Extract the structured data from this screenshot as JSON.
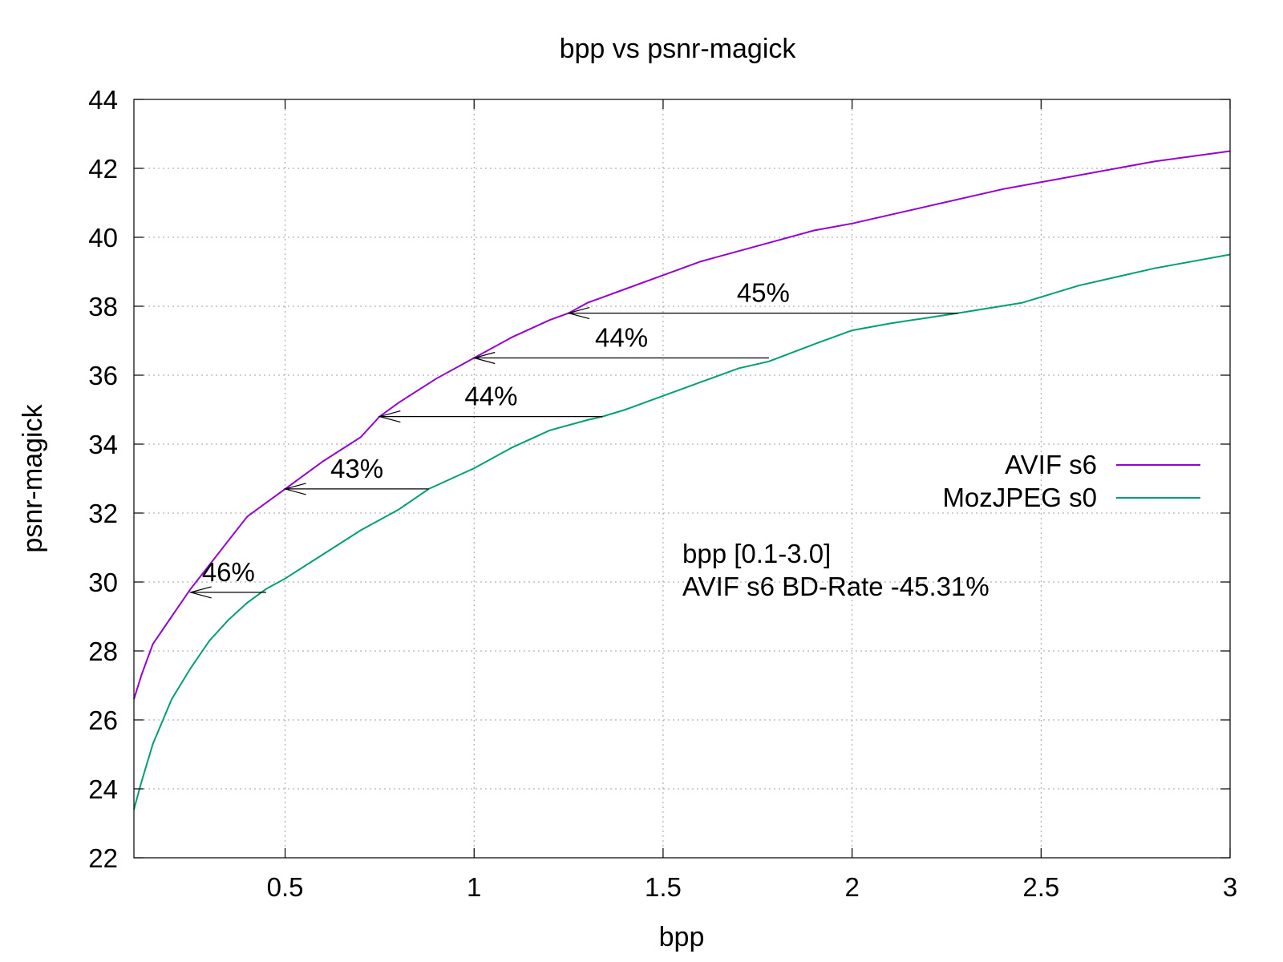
{
  "chart_data": {
    "type": "line",
    "title": "bpp vs psnr-magick",
    "xlabel": "bpp",
    "ylabel": "psnr-magick",
    "xlim": [
      0.1,
      3.0
    ],
    "ylim": [
      22,
      44
    ],
    "xticks": [
      0.5,
      1,
      1.5,
      2,
      2.5,
      3
    ],
    "xtick_labels": [
      "0.5",
      "1",
      "1.5",
      "2",
      "2.5",
      "3"
    ],
    "yticks": [
      22,
      24,
      26,
      28,
      30,
      32,
      34,
      36,
      38,
      40,
      42,
      44
    ],
    "ytick_labels": [
      "22",
      "24",
      "26",
      "28",
      "30",
      "32",
      "34",
      "36",
      "38",
      "40",
      "42",
      "44"
    ],
    "grid": true,
    "legend_position": "right",
    "series": [
      {
        "name": "AVIF s6",
        "color": "#9400d3",
        "points": [
          [
            0.1,
            26.6
          ],
          [
            0.12,
            27.3
          ],
          [
            0.15,
            28.2
          ],
          [
            0.2,
            29.0
          ],
          [
            0.25,
            29.8
          ],
          [
            0.3,
            30.5
          ],
          [
            0.35,
            31.2
          ],
          [
            0.4,
            31.9
          ],
          [
            0.5,
            32.7
          ],
          [
            0.6,
            33.5
          ],
          [
            0.7,
            34.2
          ],
          [
            0.75,
            34.8
          ],
          [
            0.8,
            35.2
          ],
          [
            0.9,
            35.9
          ],
          [
            1.0,
            36.5
          ],
          [
            1.1,
            37.1
          ],
          [
            1.2,
            37.6
          ],
          [
            1.25,
            37.8
          ],
          [
            1.3,
            38.1
          ],
          [
            1.4,
            38.5
          ],
          [
            1.5,
            38.9
          ],
          [
            1.6,
            39.3
          ],
          [
            1.7,
            39.6
          ],
          [
            1.8,
            39.9
          ],
          [
            1.9,
            40.2
          ],
          [
            2.0,
            40.4
          ],
          [
            2.2,
            40.9
          ],
          [
            2.4,
            41.4
          ],
          [
            2.6,
            41.8
          ],
          [
            2.8,
            42.2
          ],
          [
            3.0,
            42.5
          ]
        ]
      },
      {
        "name": "MozJPEG s0",
        "color": "#009e73",
        "points": [
          [
            0.1,
            23.4
          ],
          [
            0.12,
            24.2
          ],
          [
            0.15,
            25.3
          ],
          [
            0.2,
            26.6
          ],
          [
            0.25,
            27.5
          ],
          [
            0.3,
            28.3
          ],
          [
            0.35,
            28.9
          ],
          [
            0.4,
            29.4
          ],
          [
            0.45,
            29.8
          ],
          [
            0.5,
            30.1
          ],
          [
            0.6,
            30.8
          ],
          [
            0.7,
            31.5
          ],
          [
            0.8,
            32.1
          ],
          [
            0.88,
            32.7
          ],
          [
            0.9,
            32.8
          ],
          [
            1.0,
            33.3
          ],
          [
            1.1,
            33.9
          ],
          [
            1.2,
            34.4
          ],
          [
            1.3,
            34.7
          ],
          [
            1.34,
            34.8
          ],
          [
            1.4,
            35.0
          ],
          [
            1.5,
            35.4
          ],
          [
            1.6,
            35.8
          ],
          [
            1.7,
            36.2
          ],
          [
            1.78,
            36.4
          ],
          [
            1.9,
            36.9
          ],
          [
            2.0,
            37.3
          ],
          [
            2.1,
            37.5
          ],
          [
            2.28,
            37.8
          ],
          [
            2.45,
            38.1
          ],
          [
            2.6,
            38.6
          ],
          [
            2.8,
            39.1
          ],
          [
            3.0,
            39.5
          ]
        ]
      }
    ],
    "annotations": [
      {
        "label": "46%",
        "y": 29.7,
        "x_from": 0.45,
        "x_to": 0.25
      },
      {
        "label": "43%",
        "y": 32.7,
        "x_from": 0.88,
        "x_to": 0.5
      },
      {
        "label": "44%",
        "y": 34.8,
        "x_from": 1.34,
        "x_to": 0.75
      },
      {
        "label": "44%",
        "y": 36.5,
        "x_from": 1.78,
        "x_to": 1.0
      },
      {
        "label": "45%",
        "y": 37.8,
        "x_from": 2.28,
        "x_to": 1.25
      }
    ],
    "info_text": {
      "color": "#00ff00",
      "lines": [
        "bpp [0.1-3.0]",
        "AVIF s6 BD-Rate -45.31%"
      ]
    }
  }
}
